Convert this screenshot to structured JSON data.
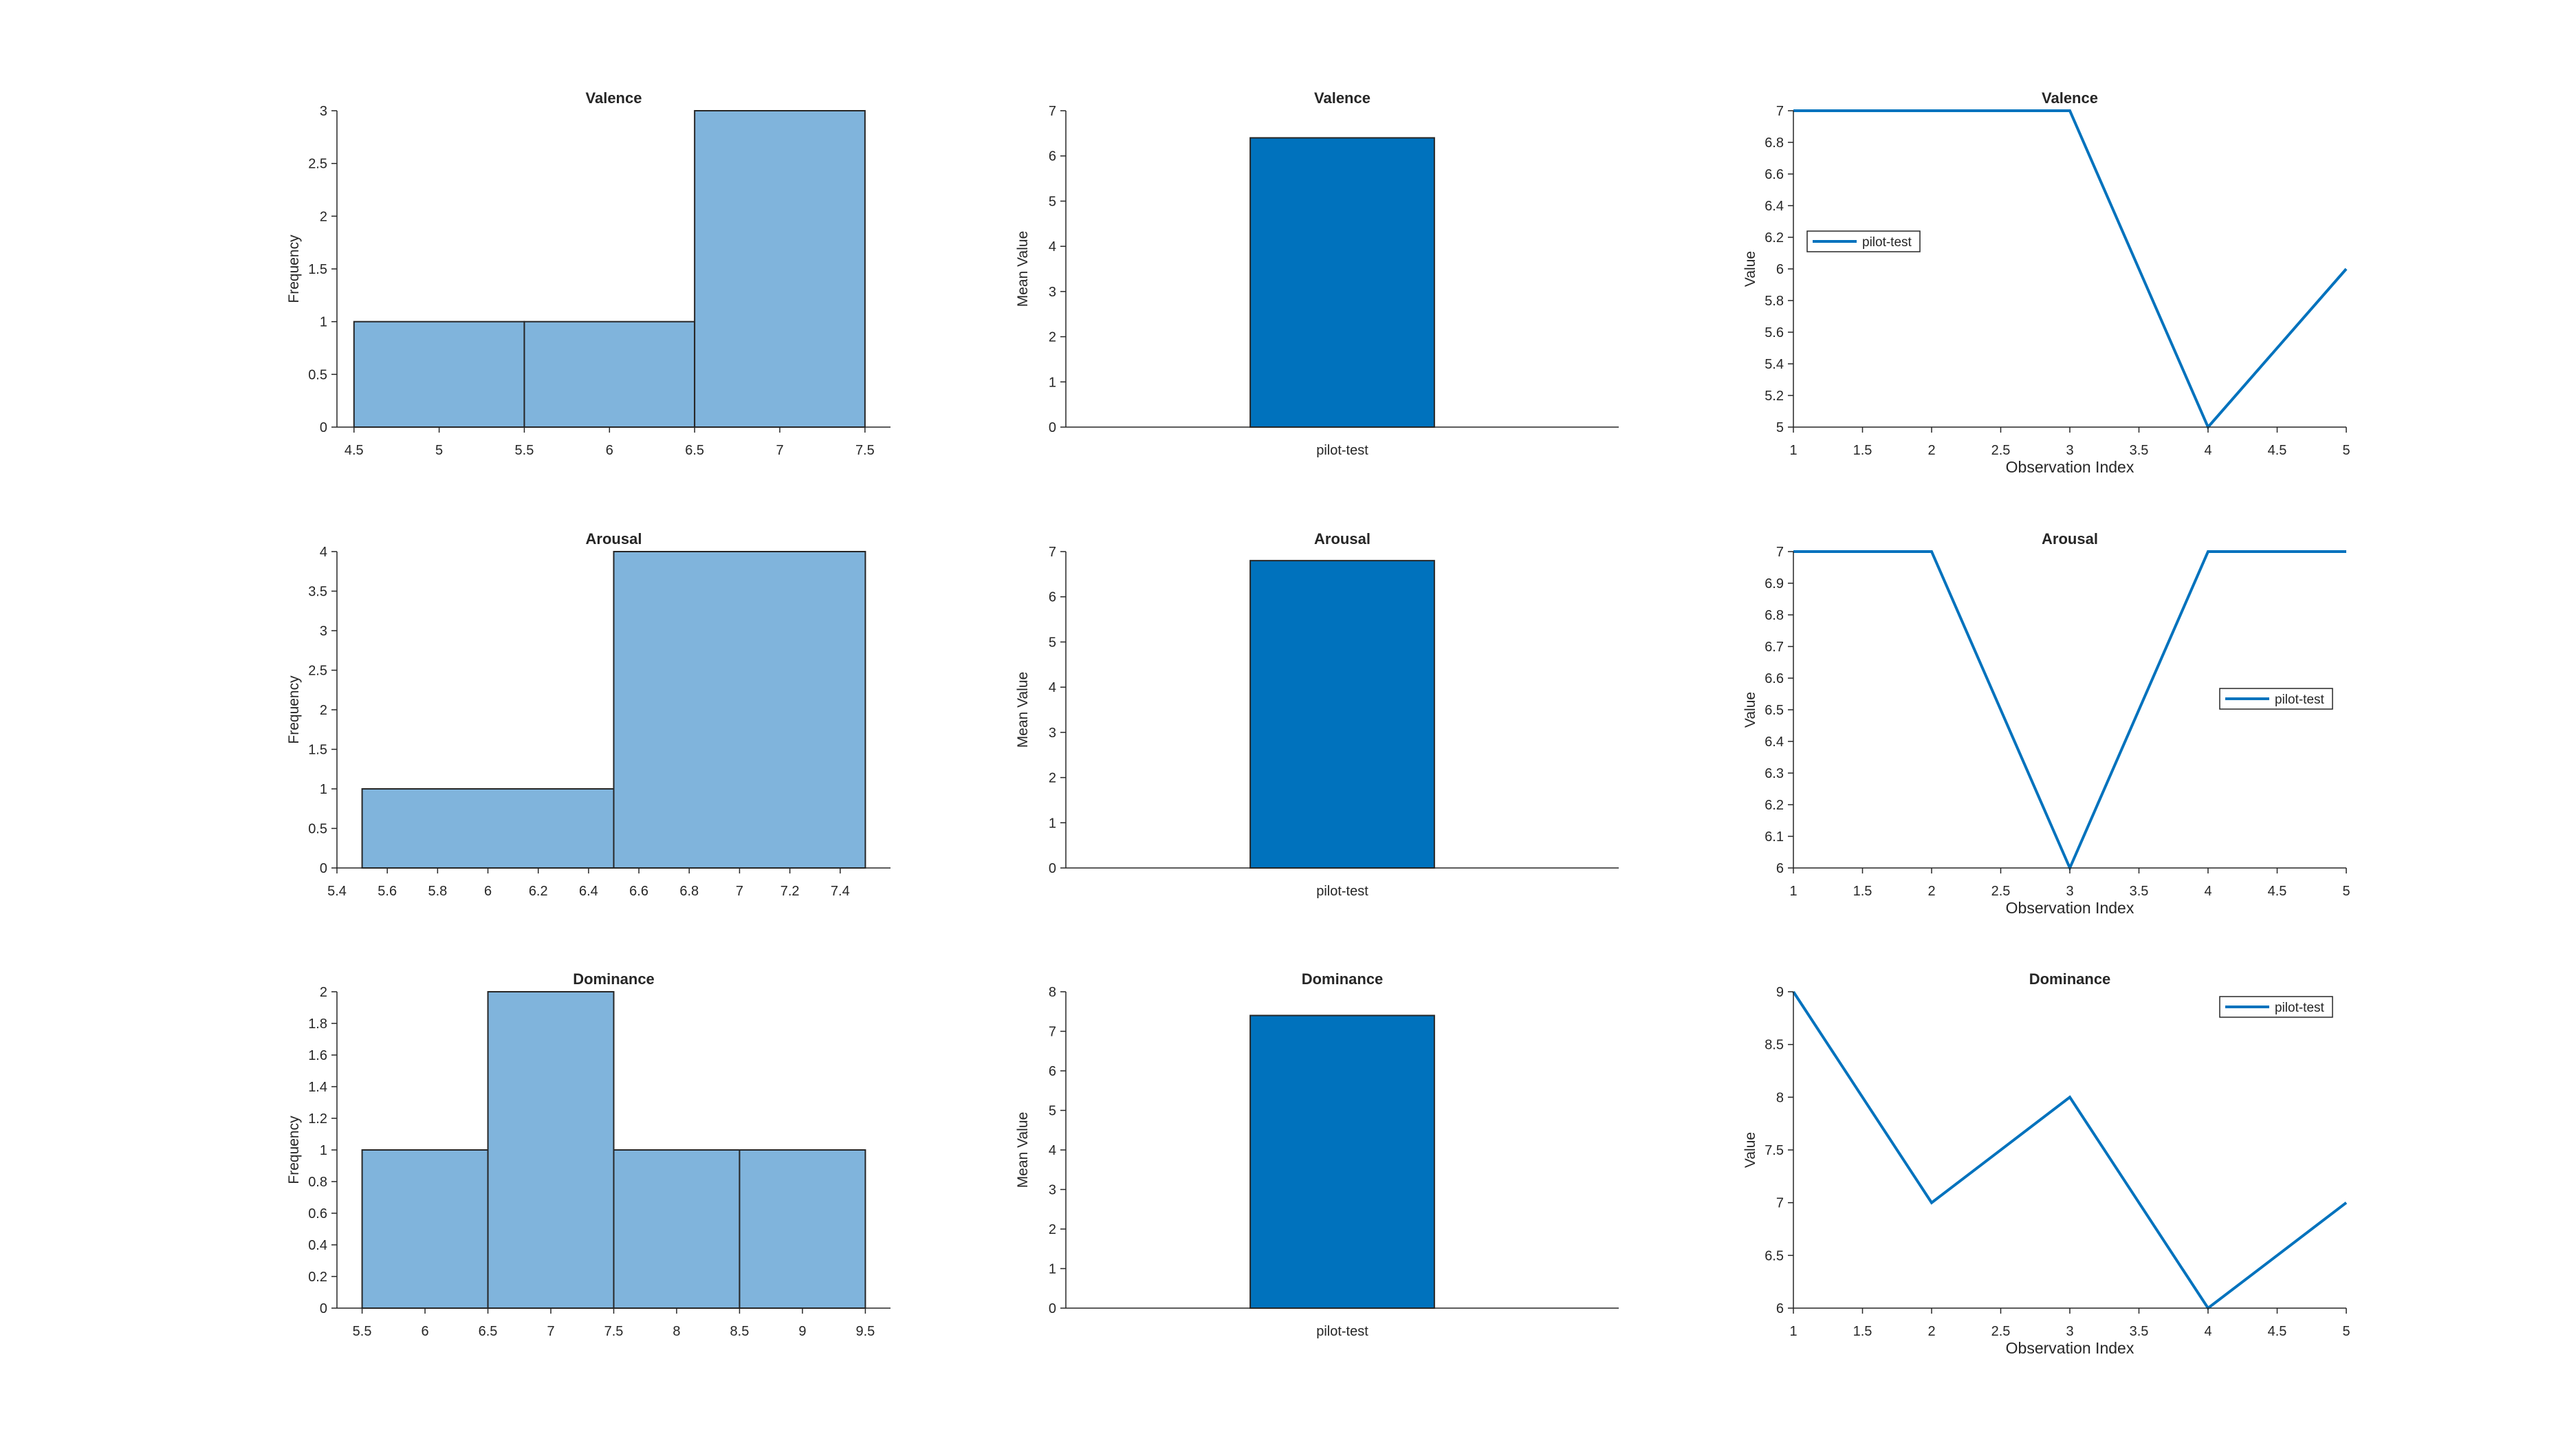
{
  "figure": {
    "background": "#ffffff",
    "axis_color": "#262626",
    "grid": false
  },
  "chart_data": [
    {
      "type": "bar",
      "kind": "histogram",
      "title": "Valence",
      "xlabel": "",
      "ylabel": "Frequency",
      "bin_edges": [
        4.5,
        5.5,
        6.5,
        7.5
      ],
      "values": [
        1,
        1,
        3
      ],
      "xlim": [
        4.4,
        7.65
      ],
      "ylim": [
        0,
        3
      ],
      "xticks": [
        4.5,
        5,
        5.5,
        6,
        6.5,
        7,
        7.5
      ],
      "xtick_labels": [
        "4.5",
        "5",
        "5.5",
        "6",
        "6.5",
        "7",
        "7.5"
      ],
      "yticks": [
        0,
        0.5,
        1,
        1.5,
        2,
        2.5,
        3
      ],
      "ytick_labels": [
        "0",
        "0.5",
        "1",
        "1.5",
        "2",
        "2.5",
        "3"
      ],
      "bar_color": "#80b4dc",
      "edge_color": "#262626"
    },
    {
      "type": "bar",
      "title": "Valence",
      "xlabel": "",
      "ylabel": "Mean Value",
      "categories": [
        "pilot-test"
      ],
      "values": [
        6.4
      ],
      "ylim": [
        0,
        7
      ],
      "yticks": [
        0,
        1,
        2,
        3,
        4,
        5,
        6,
        7
      ],
      "ytick_labels": [
        "0",
        "1",
        "2",
        "3",
        "4",
        "5",
        "6",
        "7"
      ],
      "bar_color": "#0072bd"
    },
    {
      "type": "line",
      "title": "Valence",
      "xlabel": "Observation Index",
      "ylabel": "Value",
      "x": [
        1,
        2,
        3,
        4,
        5
      ],
      "series": [
        {
          "name": "pilot-test",
          "values": [
            7,
            7,
            7,
            5,
            6
          ]
        }
      ],
      "xlim": [
        1,
        5
      ],
      "ylim": [
        5,
        7
      ],
      "xticks": [
        1,
        1.5,
        2,
        2.5,
        3,
        3.5,
        4,
        4.5,
        5
      ],
      "xtick_labels": [
        "1",
        "1.5",
        "2",
        "2.5",
        "3",
        "3.5",
        "4",
        "4.5",
        "5"
      ],
      "yticks": [
        5,
        5.2,
        5.4,
        5.6,
        5.8,
        6,
        6.2,
        6.4,
        6.6,
        6.8,
        7
      ],
      "ytick_labels": [
        "5",
        "5.2",
        "5.4",
        "5.6",
        "5.8",
        "6",
        "6.2",
        "6.4",
        "6.6",
        "6.8",
        "7"
      ],
      "legend_location": "west",
      "line_color": "#0072bd"
    },
    {
      "type": "bar",
      "kind": "histogram",
      "title": "Arousal",
      "xlabel": "",
      "ylabel": "Frequency",
      "bin_edges": [
        5.5,
        6.5,
        7.5
      ],
      "values": [
        1,
        4
      ],
      "xlim": [
        5.4,
        7.6
      ],
      "ylim": [
        0,
        4
      ],
      "xticks": [
        5.4,
        5.6,
        5.8,
        6,
        6.2,
        6.4,
        6.6,
        6.8,
        7,
        7.2,
        7.4
      ],
      "xtick_labels": [
        "5.4",
        "5.6",
        "5.8",
        "6",
        "6.2",
        "6.4",
        "6.6",
        "6.8",
        "7",
        "7.2",
        "7.4"
      ],
      "yticks": [
        0,
        0.5,
        1,
        1.5,
        2,
        2.5,
        3,
        3.5,
        4
      ],
      "ytick_labels": [
        "0",
        "0.5",
        "1",
        "1.5",
        "2",
        "2.5",
        "3",
        "3.5",
        "4"
      ],
      "bar_color": "#80b4dc",
      "edge_color": "#262626"
    },
    {
      "type": "bar",
      "title": "Arousal",
      "xlabel": "",
      "ylabel": "Mean Value",
      "categories": [
        "pilot-test"
      ],
      "values": [
        6.8
      ],
      "ylim": [
        0,
        7
      ],
      "yticks": [
        0,
        1,
        2,
        3,
        4,
        5,
        6,
        7
      ],
      "ytick_labels": [
        "0",
        "1",
        "2",
        "3",
        "4",
        "5",
        "6",
        "7"
      ],
      "bar_color": "#0072bd"
    },
    {
      "type": "line",
      "title": "Arousal",
      "xlabel": "Observation Index",
      "ylabel": "Value",
      "x": [
        1,
        2,
        3,
        4,
        5
      ],
      "series": [
        {
          "name": "pilot-test",
          "values": [
            7,
            7,
            6,
            7,
            7
          ]
        }
      ],
      "xlim": [
        1,
        5
      ],
      "ylim": [
        6,
        7
      ],
      "xticks": [
        1,
        1.5,
        2,
        2.5,
        3,
        3.5,
        4,
        4.5,
        5
      ],
      "xtick_labels": [
        "1",
        "1.5",
        "2",
        "2.5",
        "3",
        "3.5",
        "4",
        "4.5",
        "5"
      ],
      "yticks": [
        6,
        6.1,
        6.2,
        6.3,
        6.4,
        6.5,
        6.6,
        6.7,
        6.8,
        6.9,
        7
      ],
      "ytick_labels": [
        "6",
        "6.1",
        "6.2",
        "6.3",
        "6.4",
        "6.5",
        "6.6",
        "6.7",
        "6.8",
        "6.9",
        "7"
      ],
      "legend_location": "east",
      "line_color": "#0072bd"
    },
    {
      "type": "bar",
      "kind": "histogram",
      "title": "Dominance",
      "xlabel": "",
      "ylabel": "Frequency",
      "bin_edges": [
        5.5,
        6.5,
        7.5,
        8.5,
        9.5
      ],
      "values": [
        1,
        2,
        1,
        1
      ],
      "xlim": [
        5.3,
        9.7
      ],
      "ylim": [
        0,
        2
      ],
      "xticks": [
        5.5,
        6,
        6.5,
        7,
        7.5,
        8,
        8.5,
        9,
        9.5
      ],
      "xtick_labels": [
        "5.5",
        "6",
        "6.5",
        "7",
        "7.5",
        "8",
        "8.5",
        "9",
        "9.5"
      ],
      "yticks": [
        0,
        0.2,
        0.4,
        0.6,
        0.8,
        1,
        1.2,
        1.4,
        1.6,
        1.8,
        2
      ],
      "ytick_labels": [
        "0",
        "0.2",
        "0.4",
        "0.6",
        "0.8",
        "1",
        "1.2",
        "1.4",
        "1.6",
        "1.8",
        "2"
      ],
      "bar_color": "#80b4dc",
      "edge_color": "#262626"
    },
    {
      "type": "bar",
      "title": "Dominance",
      "xlabel": "",
      "ylabel": "Mean Value",
      "categories": [
        "pilot-test"
      ],
      "values": [
        7.4
      ],
      "ylim": [
        0,
        8
      ],
      "yticks": [
        0,
        1,
        2,
        3,
        4,
        5,
        6,
        7,
        8
      ],
      "ytick_labels": [
        "0",
        "1",
        "2",
        "3",
        "4",
        "5",
        "6",
        "7",
        "8"
      ],
      "bar_color": "#0072bd"
    },
    {
      "type": "line",
      "title": "Dominance",
      "xlabel": "Observation Index",
      "ylabel": "Value",
      "x": [
        1,
        2,
        3,
        4,
        5
      ],
      "series": [
        {
          "name": "pilot-test",
          "values": [
            9,
            7,
            8,
            6,
            7
          ]
        }
      ],
      "xlim": [
        1,
        5
      ],
      "ylim": [
        6,
        9
      ],
      "xticks": [
        1,
        1.5,
        2,
        2.5,
        3,
        3.5,
        4,
        4.5,
        5
      ],
      "xtick_labels": [
        "1",
        "1.5",
        "2",
        "2.5",
        "3",
        "3.5",
        "4",
        "4.5",
        "5"
      ],
      "yticks": [
        6,
        6.5,
        7,
        7.5,
        8,
        8.5,
        9
      ],
      "ytick_labels": [
        "6",
        "6.5",
        "7",
        "7.5",
        "8",
        "8.5",
        "9"
      ],
      "legend_location": "northeast",
      "line_color": "#0072bd"
    }
  ]
}
